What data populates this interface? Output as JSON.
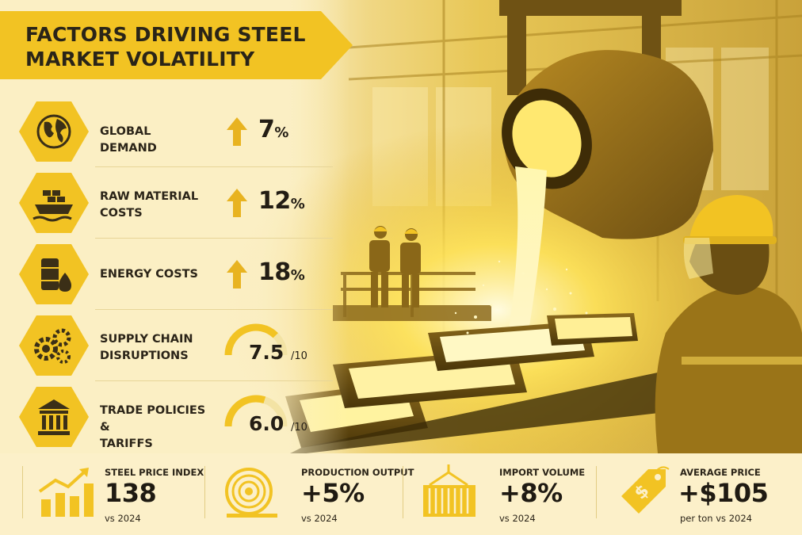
{
  "title": {
    "line1": "FACTORS DRIVING STEEL",
    "line2": "MARKET VOLATILITY"
  },
  "factors": [
    {
      "label": "GLOBAL DEMAND",
      "value": "7",
      "unit": "%",
      "indicator": "arrow-up",
      "icon": "globe-icon"
    },
    {
      "label_line1": "RAW MATERIAL",
      "label_line2": "COSTS",
      "value": "12",
      "unit": "%",
      "indicator": "arrow-up",
      "icon": "cargo-ship-icon"
    },
    {
      "label": "ENERGY COSTS",
      "value": "18",
      "unit": "%",
      "indicator": "arrow-up",
      "icon": "oil-barrel-icon"
    },
    {
      "label_line1": "SUPPLY CHAIN",
      "label_line2": "DISRUPTIONS",
      "value": "7.5",
      "unit": "/10",
      "indicator": "gauge",
      "gauge_fraction": 0.75,
      "icon": "gears-icon"
    },
    {
      "label_line1": "TRADE POLICIES &",
      "label_line2": "TARIFFS",
      "value": "6.0",
      "unit": "/10",
      "indicator": "gauge",
      "gauge_fraction": 0.6,
      "icon": "government-building-icon"
    }
  ],
  "stats": [
    {
      "label": "STEEL PRICE INDEX",
      "value": "138",
      "sub": "vs 2024",
      "icon": "rising-bar-chart-icon"
    },
    {
      "label": "PRODUCTION OUTPUT",
      "value": "+5%",
      "sub": "vs 2024",
      "icon": "steel-coil-icon"
    },
    {
      "label": "IMPORT VOLUME",
      "value": "+8%",
      "sub": "vs 2024",
      "icon": "shipping-container-icon"
    },
    {
      "label": "AVERAGE PRICE",
      "value": "+$105",
      "sub": "per ton vs 2024",
      "icon": "price-tag-icon"
    }
  ],
  "colors": {
    "accent": "#f2c323",
    "accent_light": "#f7d75c",
    "background": "#fbefc4",
    "text": "#2b2418"
  }
}
